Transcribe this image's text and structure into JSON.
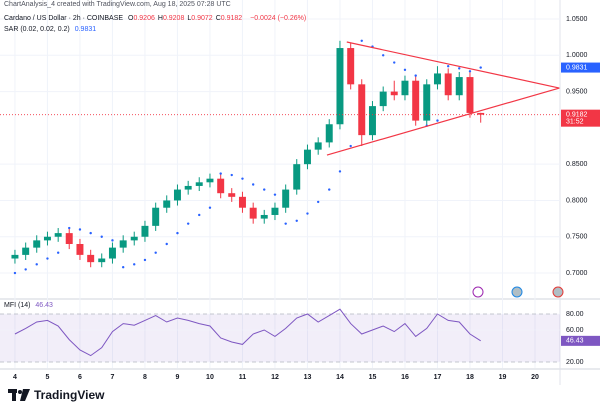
{
  "chart_data": [
    {
      "type": "candlestick",
      "subtitle": "ChartAnalysis_4 created with TradingView.com, Aug 18, 2025 07:28 UTC",
      "title": "Cardano / US Dollar · 2h · COINBASE",
      "ohlc_labels": [
        "O",
        "H",
        "L",
        "C"
      ],
      "change": "−0.0024 (−0.26%)",
      "countdown": "31:52",
      "x": [
        4.0,
        4.33,
        4.67,
        5.0,
        5.33,
        5.67,
        6.0,
        6.33,
        6.67,
        7.0,
        7.33,
        7.67,
        8.0,
        8.33,
        8.67,
        9.0,
        9.33,
        9.67,
        10.0,
        10.33,
        10.67,
        11.0,
        11.33,
        11.67,
        12.0,
        12.33,
        12.67,
        13.0,
        13.33,
        13.67,
        14.0,
        14.33,
        14.67,
        15.0,
        15.33,
        15.67,
        16.0,
        16.33,
        16.67,
        17.0,
        17.33,
        17.67,
        18.0,
        18.33
      ],
      "open": [
        0.72,
        0.725,
        0.735,
        0.745,
        0.75,
        0.755,
        0.74,
        0.725,
        0.715,
        0.72,
        0.735,
        0.745,
        0.75,
        0.765,
        0.79,
        0.8,
        0.815,
        0.82,
        0.825,
        0.83,
        0.81,
        0.805,
        0.79,
        0.775,
        0.78,
        0.79,
        0.815,
        0.85,
        0.87,
        0.88,
        0.905,
        1.01,
        0.96,
        0.89,
        0.93,
        0.95,
        0.945,
        0.965,
        0.91,
        0.96,
        0.975,
        0.945,
        0.97,
        0.9206
      ],
      "high": [
        0.732,
        0.742,
        0.752,
        0.757,
        0.762,
        0.762,
        0.747,
        0.732,
        0.727,
        0.742,
        0.752,
        0.757,
        0.772,
        0.797,
        0.807,
        0.822,
        0.827,
        0.832,
        0.837,
        0.837,
        0.817,
        0.812,
        0.797,
        0.787,
        0.797,
        0.822,
        0.857,
        0.877,
        0.887,
        0.912,
        1.02,
        1.017,
        0.967,
        0.937,
        0.957,
        0.965,
        0.972,
        0.972,
        0.967,
        0.985,
        0.982,
        0.977,
        0.977,
        0.9208
      ],
      "low": [
        0.713,
        0.718,
        0.728,
        0.738,
        0.743,
        0.733,
        0.718,
        0.708,
        0.708,
        0.713,
        0.728,
        0.738,
        0.743,
        0.758,
        0.783,
        0.793,
        0.808,
        0.813,
        0.818,
        0.803,
        0.798,
        0.783,
        0.768,
        0.768,
        0.773,
        0.783,
        0.808,
        0.843,
        0.863,
        0.873,
        0.898,
        0.953,
        0.875,
        0.883,
        0.923,
        0.938,
        0.938,
        0.903,
        0.903,
        0.953,
        0.938,
        0.938,
        0.914,
        0.9072
      ],
      "close": [
        0.725,
        0.735,
        0.745,
        0.75,
        0.755,
        0.74,
        0.725,
        0.715,
        0.72,
        0.735,
        0.745,
        0.75,
        0.765,
        0.79,
        0.8,
        0.815,
        0.82,
        0.825,
        0.83,
        0.81,
        0.805,
        0.79,
        0.775,
        0.78,
        0.79,
        0.815,
        0.85,
        0.87,
        0.88,
        0.905,
        1.01,
        0.96,
        0.89,
        0.93,
        0.95,
        0.945,
        0.965,
        0.91,
        0.96,
        0.975,
        0.945,
        0.97,
        0.9206,
        0.9182
      ],
      "up_color": "#089981",
      "down_color": "#f23645",
      "sar": {
        "name": "SAR (0.02, 0.02, 0.2)",
        "color": "#2962ff",
        "values": [
          0.7,
          0.705,
          0.712,
          0.72,
          0.728,
          0.762,
          0.76,
          0.755,
          0.75,
          0.745,
          0.708,
          0.712,
          0.718,
          0.728,
          0.74,
          0.755,
          0.768,
          0.78,
          0.79,
          0.837,
          0.835,
          0.83,
          0.822,
          0.815,
          0.808,
          0.768,
          0.772,
          0.782,
          0.798,
          0.815,
          0.84,
          0.875,
          1.02,
          1.012,
          1.0,
          0.99,
          0.98,
          0.972,
          0.903,
          0.91,
          0.985,
          0.982,
          0.978,
          0.9831
        ]
      },
      "trendlines": [
        {
          "x": [
            14.21,
            20.75
          ],
          "y": [
            1.0183,
            0.9549
          ]
        },
        {
          "x": [
            13.6,
            20.75
          ],
          "y": [
            0.8626,
            0.9549
          ]
        }
      ],
      "trendline_color": "#f23645",
      "xlim": [
        3.54,
        20.77
      ],
      "xticks": [
        4,
        5,
        6,
        7,
        8,
        9,
        10,
        11,
        12,
        13,
        14,
        15,
        16,
        17,
        18,
        19,
        20
      ],
      "ylim": [
        0.6656,
        1.0762
      ],
      "yticks": [
        {
          "value": 1.05,
          "label": "1.0500"
        },
        {
          "value": 1.0,
          "label": "1.0000"
        },
        {
          "value": 0.95,
          "label": "0.9500"
        },
        {
          "value": 0.85,
          "label": "0.8500"
        },
        {
          "value": 0.8,
          "label": "0.8000"
        },
        {
          "value": 0.75,
          "label": "0.7500"
        },
        {
          "value": 0.7,
          "label": "0.7000"
        }
      ],
      "grid": true
    },
    {
      "type": "line",
      "series": [
        {
          "name": "MFI (14)",
          "color": "#7e57c2",
          "values": [
            55,
            62,
            70,
            72,
            65,
            48,
            35,
            28,
            38,
            58,
            68,
            66,
            72,
            78,
            70,
            75,
            72,
            68,
            65,
            50,
            45,
            42,
            55,
            60,
            52,
            62,
            75,
            80,
            70,
            78,
            86,
            68,
            55,
            60,
            65,
            58,
            68,
            52,
            62,
            80,
            72,
            70,
            55,
            46.43
          ]
        }
      ],
      "bands": [
        20,
        80
      ],
      "band_color": "#7e57c2",
      "ylim": [
        12.5,
        97.5
      ],
      "yticks": [
        {
          "value": 80,
          "label": "80.00"
        },
        {
          "value": 60,
          "label": "60.00"
        },
        {
          "value": 20,
          "label": "20.00"
        }
      ],
      "grid": true
    }
  ],
  "footer": "TradingView"
}
